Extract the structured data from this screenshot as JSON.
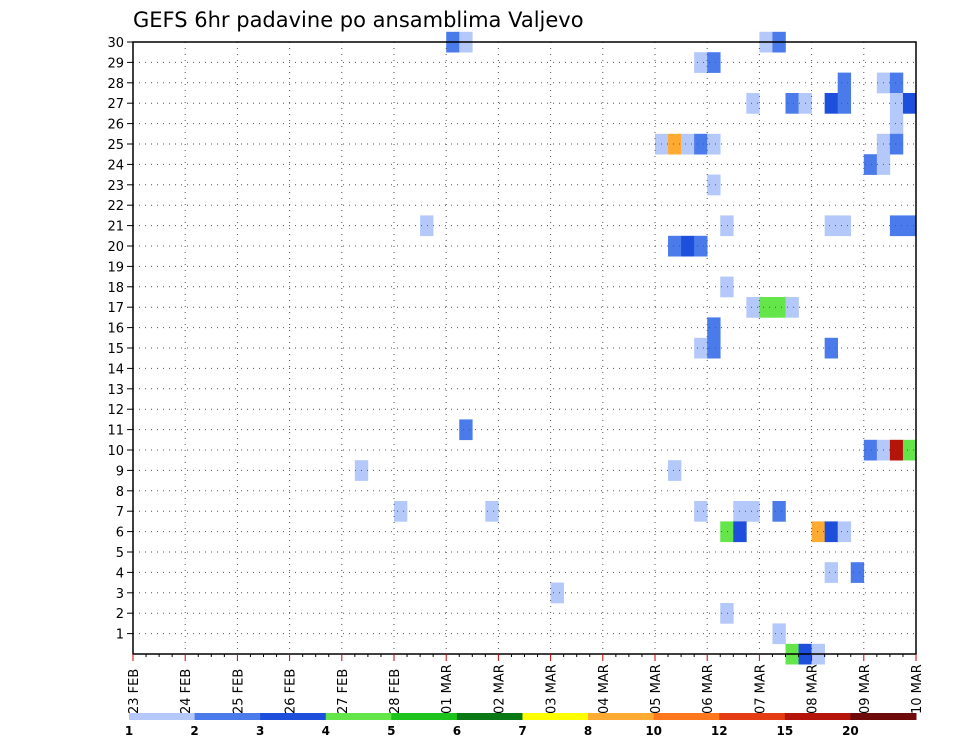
{
  "chart_data": {
    "type": "heatmap",
    "title": "GEFS 6hr padavine po ansamblima Valjevo",
    "xlabel": "",
    "ylabel": "",
    "x_ticks": [
      "23 FEB",
      "24 FEB",
      "25 FEB",
      "26 FEB",
      "27 FEB",
      "28 FEB",
      "01 MAR",
      "02 MAR",
      "03 MAR",
      "04 MAR",
      "05 MAR",
      "06 MAR",
      "07 MAR",
      "08 MAR",
      "09 MAR",
      "10 MAR"
    ],
    "x_steps_per_day": 4,
    "x_range": [
      0,
      60
    ],
    "y_ticks": [
      1,
      2,
      3,
      4,
      5,
      6,
      7,
      8,
      9,
      10,
      11,
      12,
      13,
      14,
      15,
      16,
      17,
      18,
      19,
      20,
      21,
      22,
      23,
      24,
      25,
      26,
      27,
      28,
      29,
      30
    ],
    "y_range": [
      0,
      30
    ],
    "grid": true,
    "legend": {
      "placement": "bottom",
      "labels": [
        "1",
        "2",
        "3",
        "4",
        "5",
        "6",
        "7",
        "8",
        "10",
        "12",
        "15",
        "20"
      ],
      "colors": [
        "#b4c8fa",
        "#4b7beb",
        "#1e4fdc",
        "#64e64b",
        "#1ec31e",
        "#0a7814",
        "#ffff00",
        "#ffaa32",
        "#ff781e",
        "#e63c14",
        "#b4140a",
        "#6e0a0a"
      ]
    },
    "cells": [
      {
        "member": 30,
        "step": 24,
        "value": 2
      },
      {
        "member": 30,
        "step": 25,
        "value": 1
      },
      {
        "member": 30,
        "step": 48,
        "value": 1
      },
      {
        "member": 30,
        "step": 49,
        "value": 2
      },
      {
        "member": 29,
        "step": 43,
        "value": 1
      },
      {
        "member": 29,
        "step": 44,
        "value": 2
      },
      {
        "member": 28,
        "step": 54,
        "value": 2
      },
      {
        "member": 28,
        "step": 57,
        "value": 1
      },
      {
        "member": 28,
        "step": 58,
        "value": 2
      },
      {
        "member": 27,
        "step": 47,
        "value": 1
      },
      {
        "member": 27,
        "step": 50,
        "value": 2
      },
      {
        "member": 27,
        "step": 51,
        "value": 1
      },
      {
        "member": 27,
        "step": 53,
        "value": 3
      },
      {
        "member": 27,
        "step": 54,
        "value": 2
      },
      {
        "member": 27,
        "step": 58,
        "value": 1
      },
      {
        "member": 27,
        "step": 59,
        "value": 3
      },
      {
        "member": 26,
        "step": 58,
        "value": 1
      },
      {
        "member": 25,
        "step": 40,
        "value": 1
      },
      {
        "member": 25,
        "step": 41,
        "value": 8
      },
      {
        "member": 25,
        "step": 42,
        "value": 1
      },
      {
        "member": 25,
        "step": 43,
        "value": 2
      },
      {
        "member": 25,
        "step": 44,
        "value": 1
      },
      {
        "member": 25,
        "step": 57,
        "value": 1
      },
      {
        "member": 25,
        "step": 58,
        "value": 2
      },
      {
        "member": 24,
        "step": 56,
        "value": 2
      },
      {
        "member": 24,
        "step": 57,
        "value": 1
      },
      {
        "member": 23,
        "step": 44,
        "value": 1
      },
      {
        "member": 21,
        "step": 22,
        "value": 1
      },
      {
        "member": 21,
        "step": 45,
        "value": 1
      },
      {
        "member": 21,
        "step": 53,
        "value": 1
      },
      {
        "member": 21,
        "step": 54,
        "value": 1
      },
      {
        "member": 21,
        "step": 58,
        "value": 2
      },
      {
        "member": 21,
        "step": 59,
        "value": 2
      },
      {
        "member": 20,
        "step": 41,
        "value": 2
      },
      {
        "member": 20,
        "step": 42,
        "value": 3
      },
      {
        "member": 20,
        "step": 43,
        "value": 2
      },
      {
        "member": 18,
        "step": 45,
        "value": 1
      },
      {
        "member": 17,
        "step": 47,
        "value": 1
      },
      {
        "member": 17,
        "step": 48,
        "value": 4
      },
      {
        "member": 17,
        "step": 49,
        "value": 4
      },
      {
        "member": 17,
        "step": 50,
        "value": 1
      },
      {
        "member": 16,
        "step": 44,
        "value": 2
      },
      {
        "member": 15,
        "step": 43,
        "value": 1
      },
      {
        "member": 15,
        "step": 44,
        "value": 2
      },
      {
        "member": 15,
        "step": 53,
        "value": 2
      },
      {
        "member": 11,
        "step": 25,
        "value": 2
      },
      {
        "member": 10,
        "step": 56,
        "value": 2
      },
      {
        "member": 10,
        "step": 57,
        "value": 1
      },
      {
        "member": 10,
        "step": 58,
        "value": 15
      },
      {
        "member": 10,
        "step": 59,
        "value": 4
      },
      {
        "member": 9,
        "step": 17,
        "value": 1
      },
      {
        "member": 9,
        "step": 41,
        "value": 1
      },
      {
        "member": 7,
        "step": 20,
        "value": 1
      },
      {
        "member": 7,
        "step": 27,
        "value": 1
      },
      {
        "member": 7,
        "step": 43,
        "value": 1
      },
      {
        "member": 7,
        "step": 46,
        "value": 1
      },
      {
        "member": 7,
        "step": 47,
        "value": 1
      },
      {
        "member": 7,
        "step": 49,
        "value": 2
      },
      {
        "member": 6,
        "step": 45,
        "value": 4
      },
      {
        "member": 6,
        "step": 46,
        "value": 3
      },
      {
        "member": 6,
        "step": 52,
        "value": 8
      },
      {
        "member": 6,
        "step": 53,
        "value": 3
      },
      {
        "member": 6,
        "step": 54,
        "value": 1
      },
      {
        "member": 4,
        "step": 53,
        "value": 1
      },
      {
        "member": 4,
        "step": 55,
        "value": 2
      },
      {
        "member": 3,
        "step": 32,
        "value": 1
      },
      {
        "member": 2,
        "step": 45,
        "value": 1
      },
      {
        "member": 1,
        "step": 49,
        "value": 1
      },
      {
        "member": 0,
        "step": 50,
        "value": 4
      },
      {
        "member": 0,
        "step": 51,
        "value": 3
      },
      {
        "member": 0,
        "step": 52,
        "value": 1
      }
    ]
  }
}
